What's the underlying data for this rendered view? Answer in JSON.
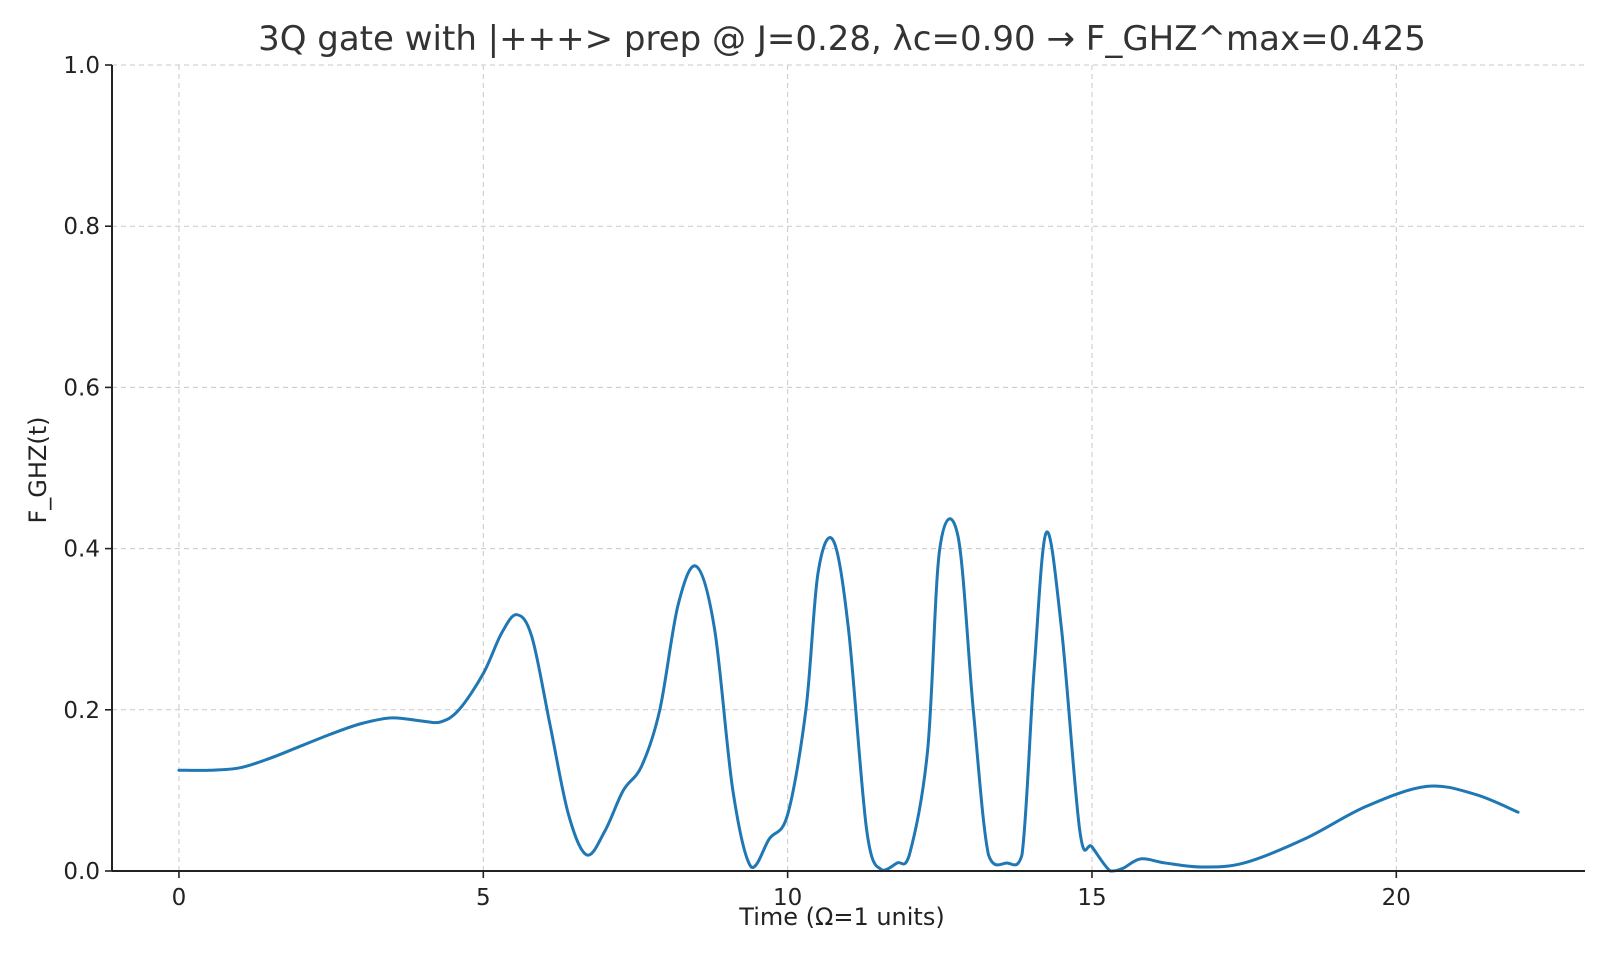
{
  "chart_data": {
    "type": "line",
    "title": "3Q gate with |+++> prep @ J=0.28, λc=0.90 → F_GHZ^max=0.425",
    "xlabel": "Time (Ω=1 units)",
    "ylabel": "F_GHZ(t)",
    "xlim": [
      -1.1,
      23.1
    ],
    "ylim": [
      0,
      1.0
    ],
    "xticks": [
      0,
      5,
      10,
      15,
      20
    ],
    "xtick_labels": [
      "0",
      "5",
      "10",
      "15",
      "20"
    ],
    "yticks": [
      0.0,
      0.2,
      0.4,
      0.6,
      0.8,
      1.0
    ],
    "ytick_labels": [
      "0.0",
      "0.2",
      "0.4",
      "0.6",
      "0.8",
      "1.0"
    ],
    "grid": true,
    "series_color": "#1f77b4",
    "series": [
      {
        "x": [
          0,
          0.5,
          1.0,
          1.5,
          2.0,
          2.5,
          3.0,
          3.5,
          4.0,
          4.3,
          4.6,
          5.0,
          5.3,
          5.55,
          5.8,
          6.1,
          6.4,
          6.7,
          7.0,
          7.3,
          7.6,
          7.9,
          8.2,
          8.5,
          8.8,
          9.1,
          9.4,
          9.7,
          10.0,
          10.3,
          10.5,
          10.75,
          11.0,
          11.3,
          11.55,
          11.8,
          12.0,
          12.3,
          12.5,
          12.8,
          13.05,
          13.3,
          13.6,
          13.85,
          14.05,
          14.25,
          14.5,
          14.8,
          15.0,
          15.3,
          15.5,
          15.8,
          16.2,
          16.8,
          17.5,
          18.5,
          19.5,
          20.5,
          21.3,
          22.0
        ],
        "y": [
          0.125,
          0.125,
          0.128,
          0.14,
          0.155,
          0.17,
          0.183,
          0.19,
          0.186,
          0.185,
          0.2,
          0.245,
          0.295,
          0.318,
          0.29,
          0.18,
          0.07,
          0.02,
          0.05,
          0.1,
          0.13,
          0.2,
          0.33,
          0.378,
          0.3,
          0.1,
          0.005,
          0.04,
          0.07,
          0.2,
          0.37,
          0.41,
          0.3,
          0.05,
          0.001,
          0.01,
          0.02,
          0.15,
          0.4,
          0.415,
          0.2,
          0.02,
          0.01,
          0.02,
          0.25,
          0.42,
          0.3,
          0.05,
          0.03,
          0.0,
          0.003,
          0.015,
          0.01,
          0.005,
          0.01,
          0.04,
          0.08,
          0.105,
          0.095,
          0.073
        ]
      }
    ]
  }
}
